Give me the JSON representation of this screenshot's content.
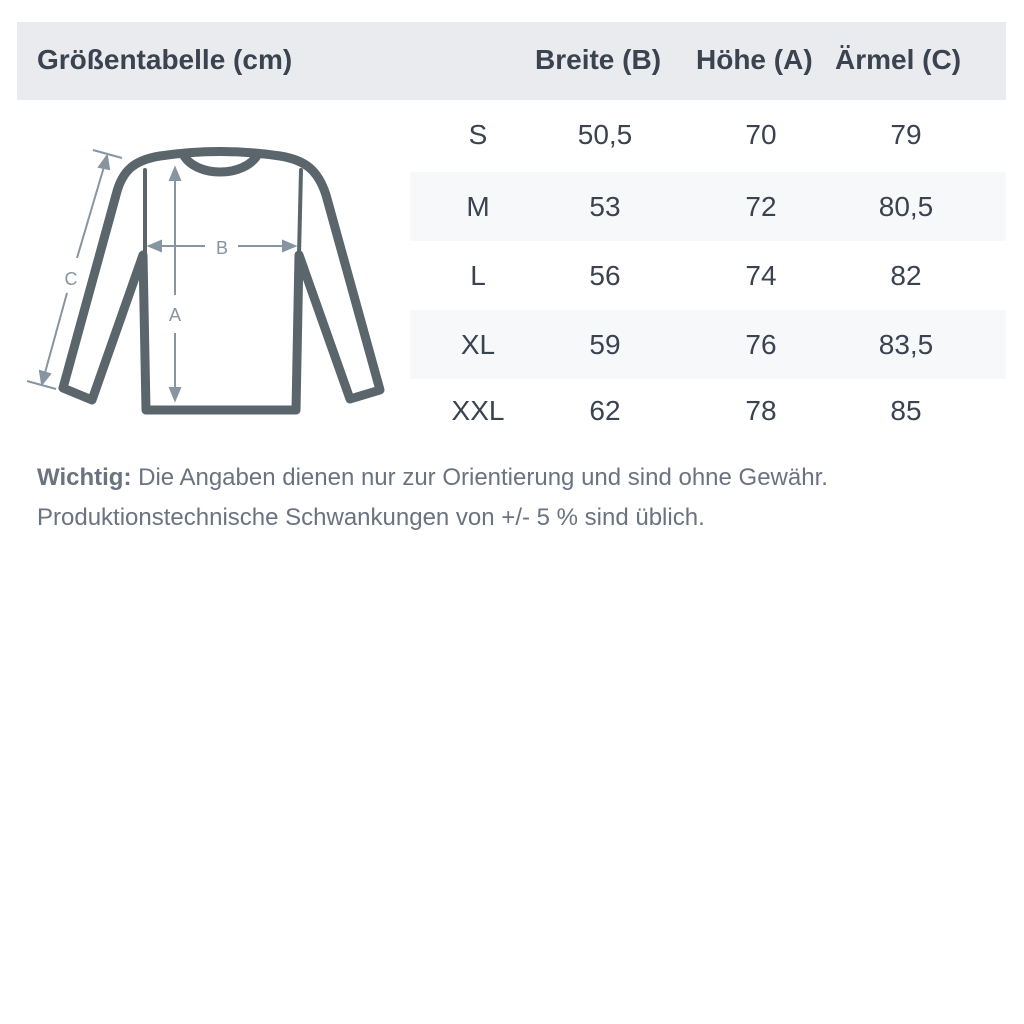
{
  "title": "Größentabelle (cm)",
  "columns": [
    "Breite (B)",
    "Höhe (A)",
    "Ärmel (C)"
  ],
  "rows": [
    {
      "size": "S",
      "b": "50,5",
      "a": "70",
      "c": "79"
    },
    {
      "size": "M",
      "b": "53",
      "a": "72",
      "c": "80,5"
    },
    {
      "size": "L",
      "b": "56",
      "a": "74",
      "c": "82"
    },
    {
      "size": "XL",
      "b": "59",
      "a": "76",
      "c": "83,5"
    },
    {
      "size": "XXL",
      "b": "62",
      "a": "78",
      "c": "85"
    }
  ],
  "diagram": {
    "label_a": "A",
    "label_b": "B",
    "label_c": "C"
  },
  "note": {
    "label": "Wichtig:",
    "line1": " Die Angaben dienen nur zur Orientierung und sind ohne Gewähr.",
    "line2": "Produktionstechnische Schwankungen von +/- 5 % sind üblich."
  },
  "colors": {
    "header_bg": "#e9ebef",
    "row_alt_bg": "#f7f8fa",
    "sweater": "#5a656c",
    "measure": "#8795a0"
  }
}
